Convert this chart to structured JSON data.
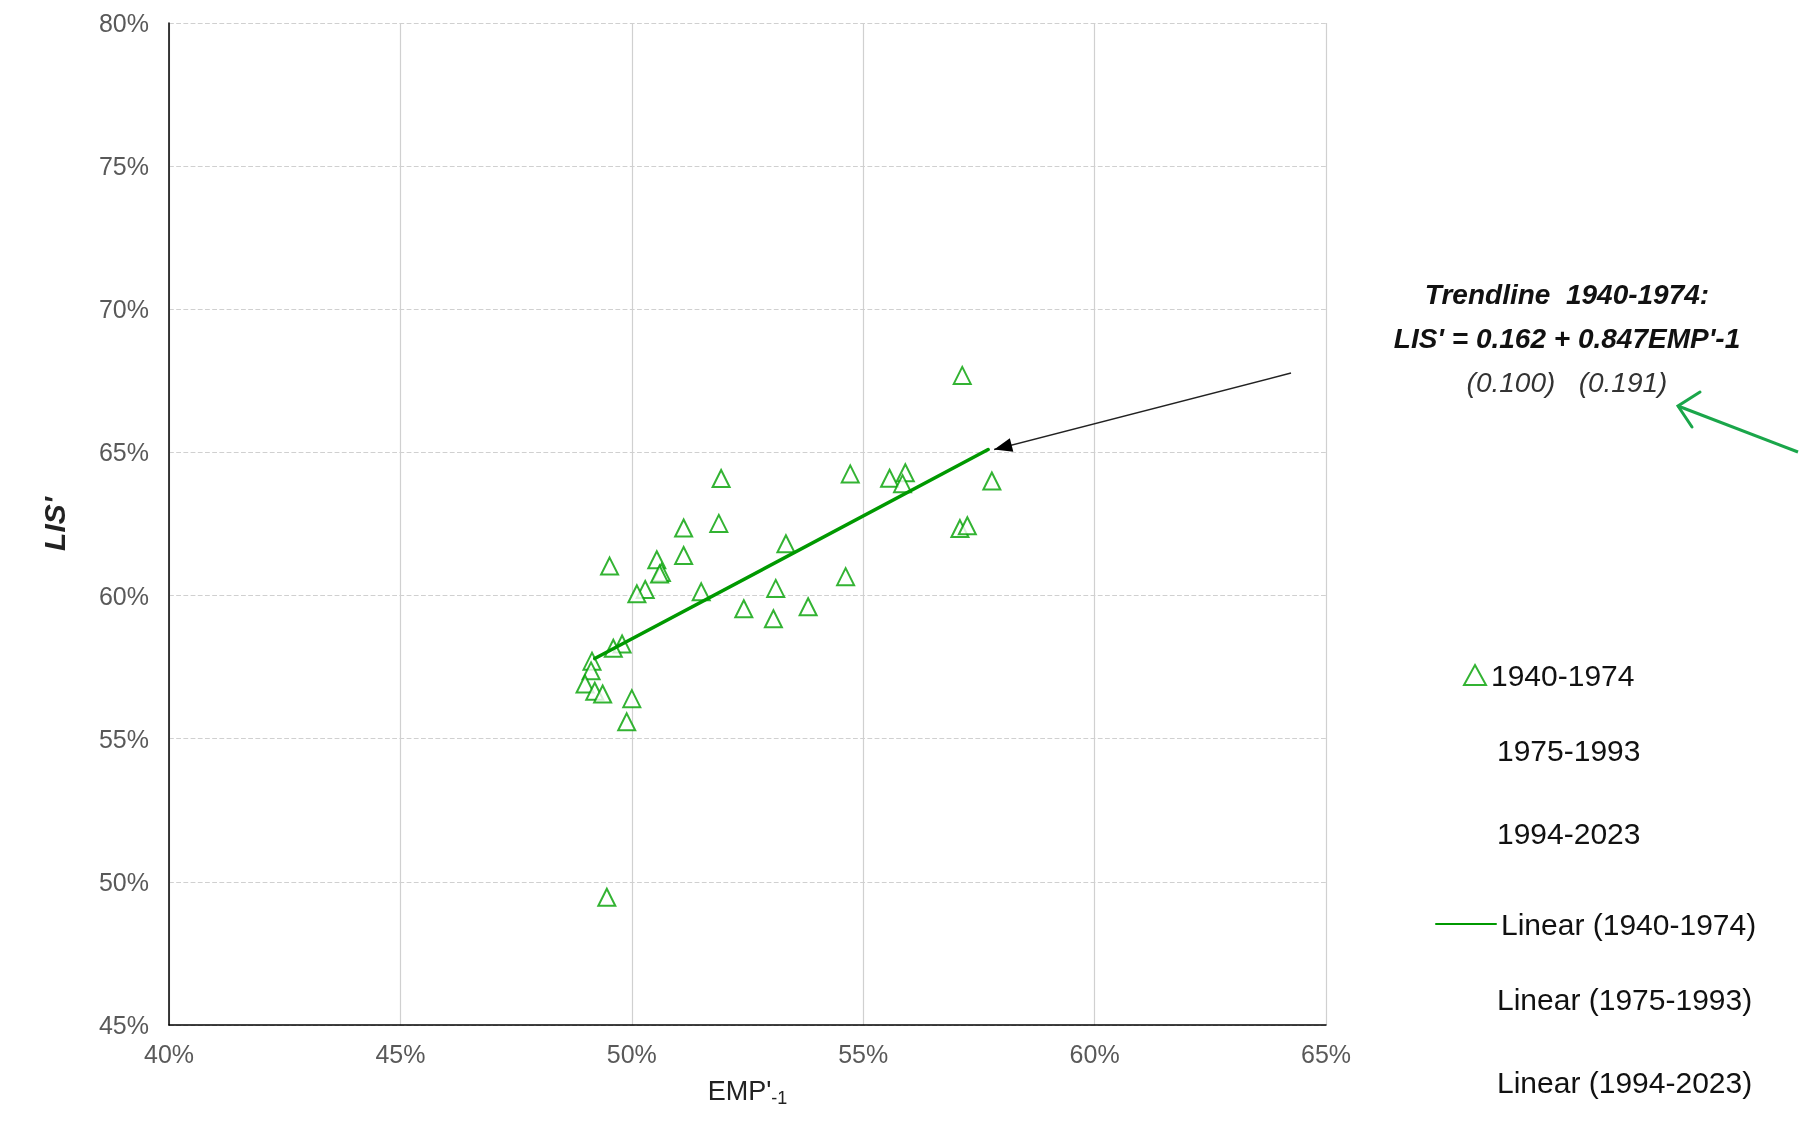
{
  "chart_data": {
    "type": "scatter",
    "xlabel": "EMP'$_{-1}$",
    "ylabel": "LIS'",
    "xlim": [
      40,
      65
    ],
    "ylim": [
      45,
      80
    ],
    "xticks": [
      {
        "value": 40,
        "label": "40%"
      },
      {
        "value": 45,
        "label": "45%"
      },
      {
        "value": 50,
        "label": "50%"
      },
      {
        "value": 55,
        "label": "55%"
      },
      {
        "value": 60,
        "label": "60%"
      },
      {
        "value": 65,
        "label": "65%"
      }
    ],
    "yticks": [
      {
        "value": 45,
        "label": "45%"
      },
      {
        "value": 50,
        "label": "50%"
      },
      {
        "value": 55,
        "label": "55%"
      },
      {
        "value": 60,
        "label": "60%"
      },
      {
        "value": 65,
        "label": "65%"
      },
      {
        "value": 70,
        "label": "70%"
      },
      {
        "value": 75,
        "label": "75%"
      },
      {
        "value": 80,
        "label": "80%"
      }
    ],
    "grid": true,
    "legend": "right",
    "annotations": [
      "Trendline  1940-1974:\nLIS' = 0.162 + 0.847EMP'-1\n(0.100)   (0.191)",
      "1975-1993",
      "1994-2023",
      "Linear (1975-1993)",
      "Linear (1994-2023)"
    ],
    "series": [
      {
        "name": "1940-1974",
        "marker": "triangle",
        "color": "#00a000",
        "x": [
          57.14,
          51.93,
          54.72,
          55.57,
          55.91,
          55.85,
          57.78,
          51.12,
          51.88,
          57.09,
          57.25,
          53.33,
          51.12,
          49.52,
          50.54,
          50.64,
          50.6,
          50.29,
          50.11,
          51.5,
          54.62,
          53.11,
          52.42,
          53.81,
          53.06,
          49.79,
          49.6,
          49.14,
          49.12,
          48.99,
          49.2,
          49.37,
          50.0,
          49.89,
          49.46
        ],
        "values": [
          67.69,
          64.09,
          64.25,
          64.1,
          64.29,
          63.91,
          64.0,
          62.36,
          62.52,
          62.34,
          62.44,
          61.81,
          61.4,
          61.03,
          61.25,
          60.81,
          60.75,
          60.21,
          60.06,
          60.13,
          60.66,
          60.25,
          59.54,
          59.61,
          59.19,
          58.31,
          58.16,
          57.71,
          57.37,
          56.91,
          56.66,
          56.56,
          56.4,
          55.59,
          49.46
        ]
      },
      {
        "name": "Linear (1940-1974)",
        "type": "line",
        "color": "#009900",
        "x": [
          49.2,
          57.7
        ],
        "values": [
          57.8,
          65.1
        ]
      }
    ]
  }
}
